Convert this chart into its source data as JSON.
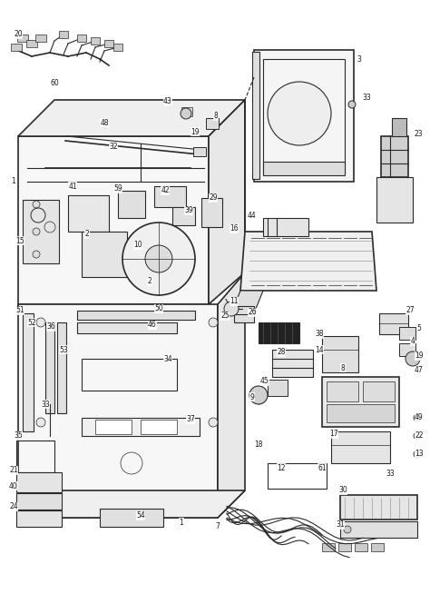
{
  "background_color": "#ffffff",
  "line_color": "#2a2a2a",
  "text_color": "#1a1a1a",
  "fig_width": 4.74,
  "fig_height": 6.54,
  "dpi": 100
}
